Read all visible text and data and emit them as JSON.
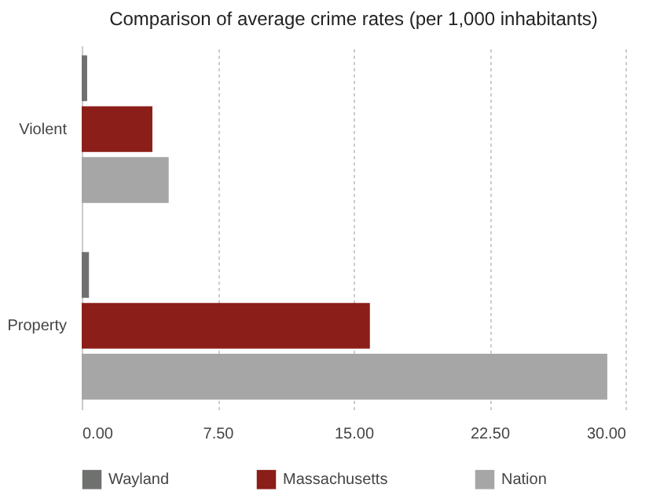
{
  "chart_data": {
    "type": "bar",
    "orientation": "horizontal",
    "title": "Comparison of average crime rates (per 1,000 inhabitants)",
    "categories": [
      "Violent",
      "Property"
    ],
    "series": [
      {
        "name": "Wayland",
        "color": "#6f716f",
        "values": [
          0.3,
          0.4
        ]
      },
      {
        "name": "Massachusetts",
        "color": "#8b1e18",
        "values": [
          3.9,
          15.9
        ]
      },
      {
        "name": "Nation",
        "color": "#a6a6a6",
        "values": [
          4.8,
          29.0
        ]
      }
    ],
    "xlim": [
      0,
      30
    ],
    "xticks": [
      {
        "value": 0,
        "label": "0.00"
      },
      {
        "value": 7.5,
        "label": "7.50"
      },
      {
        "value": 15,
        "label": "15.00"
      },
      {
        "value": 22.5,
        "label": "22.50"
      },
      {
        "value": 30,
        "label": "30.00"
      }
    ],
    "grid": "x",
    "legend": "bottom"
  }
}
